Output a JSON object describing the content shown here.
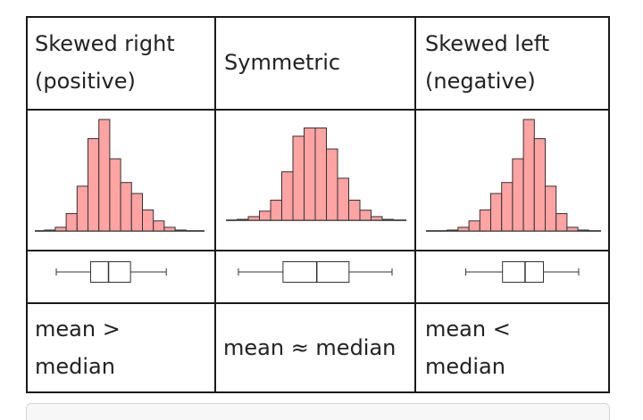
{
  "table": {
    "columns": [
      {
        "header": [
          "Skewed right",
          "(positive)"
        ],
        "relation": [
          "mean >",
          "median"
        ],
        "histogram": [
          1,
          4,
          19,
          49,
          101,
          122,
          79,
          53,
          41,
          23,
          11,
          4,
          1
        ],
        "boxplot": {
          "whisker_low": 0.0,
          "q1": 0.25,
          "median": 0.38,
          "q3": 0.54,
          "whisker_high": 0.8
        }
      },
      {
        "header": [
          "Symmetric"
        ],
        "relation": [
          "mean ≈ median"
        ],
        "histogram": [
          1,
          4,
          10,
          22,
          53,
          92,
          101,
          101,
          78,
          46,
          22,
          11,
          4,
          1
        ],
        "boxplot": {
          "whisker_low": 0.0,
          "q1": 0.29,
          "median": 0.51,
          "q3": 0.72,
          "whisker_high": 1.0
        }
      },
      {
        "header": [
          "Skewed left",
          "(negative)"
        ],
        "relation": [
          "mean <",
          "median"
        ],
        "histogram": [
          1,
          4,
          11,
          23,
          41,
          53,
          79,
          122,
          101,
          49,
          19,
          4,
          1
        ],
        "boxplot": {
          "whisker_low": 0.2,
          "q1": 0.46,
          "median": 0.62,
          "q3": 0.75,
          "whisker_high": 1.0
        }
      }
    ]
  },
  "colors": {
    "bar_fill": "#ffa3a3",
    "bar_stroke": "#333333",
    "grid_line": "#1a1a1a"
  }
}
